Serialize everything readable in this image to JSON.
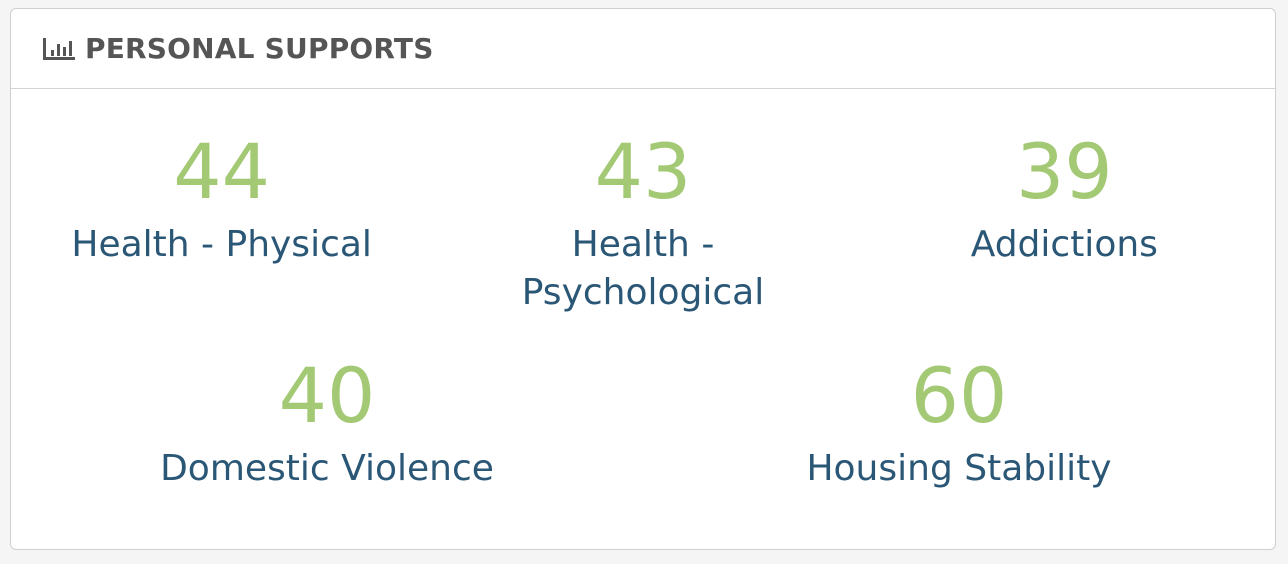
{
  "header": {
    "title": "PERSONAL SUPPORTS",
    "icon": "bar-chart-icon"
  },
  "colors": {
    "value": "#a3c974",
    "label": "#2b5777"
  },
  "stats": [
    {
      "value": "44",
      "label": "Health - Physical"
    },
    {
      "value": "43",
      "label": "Health - Psychological"
    },
    {
      "value": "39",
      "label": "Addictions"
    },
    {
      "value": "40",
      "label": "Domestic Violence"
    },
    {
      "value": "60",
      "label": "Housing Stability"
    }
  ]
}
